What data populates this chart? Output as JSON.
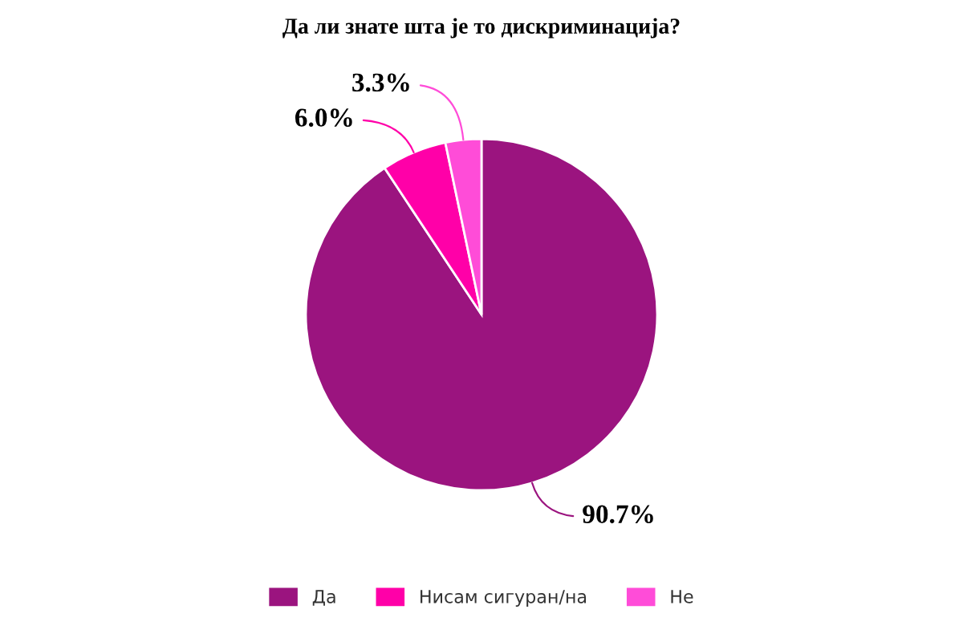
{
  "chart_data": {
    "type": "pie",
    "title": "Да ли знате шта је то дискриминација?",
    "categories": [
      "Да",
      "Нисам сигуран/на",
      "Не"
    ],
    "values": [
      90.7,
      6.0,
      3.3
    ],
    "colors": [
      "#9b147f",
      "#ff00a8",
      "#ff4cd8"
    ],
    "value_labels": [
      "90.7%",
      "6.0%",
      "3.3%"
    ],
    "legend": "bottom"
  }
}
